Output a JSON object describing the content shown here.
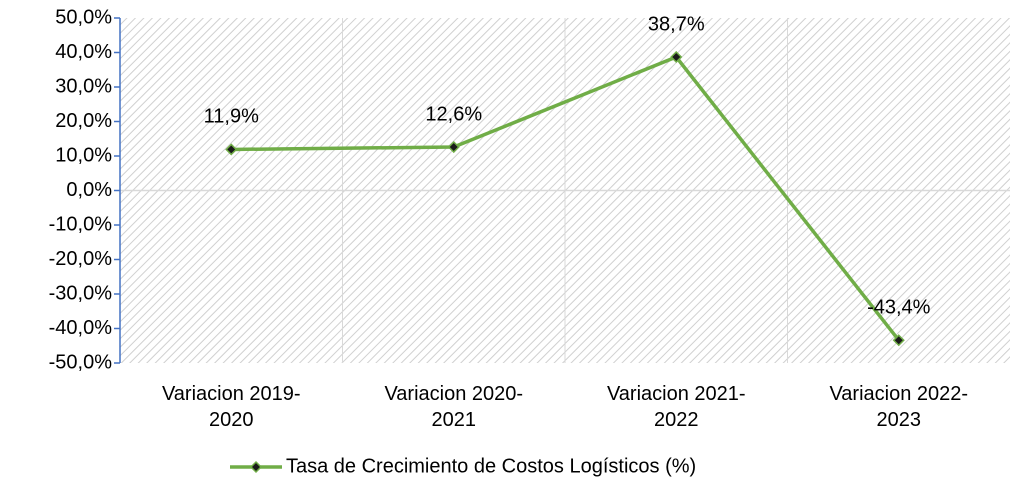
{
  "chart_data": {
    "type": "line",
    "categories": [
      "Variacion 2019-2020",
      "Variacion 2020-2021",
      "Variacion 2021-2022",
      "Variacion 2022-2023"
    ],
    "series": [
      {
        "name": "Tasa de Crecimiento de Costos Logísticos (%)",
        "color": "#70ad47",
        "values": [
          11.9,
          12.6,
          38.7,
          -43.4
        ],
        "value_labels": [
          "11,9%",
          "12,6%",
          "38,7%",
          "-43,4%"
        ]
      }
    ],
    "ylim": [
      -50,
      50
    ],
    "yticks": [
      {
        "value": -50,
        "label": "-50,0%"
      },
      {
        "value": -40,
        "label": "-40,0%"
      },
      {
        "value": -30,
        "label": "-30,0%"
      },
      {
        "value": -20,
        "label": "-20,0%"
      },
      {
        "value": -10,
        "label": "-10,0%"
      },
      {
        "value": 0,
        "label": "0,0%"
      },
      {
        "value": 10,
        "label": "10,0%"
      },
      {
        "value": 20,
        "label": "20,0%"
      },
      {
        "value": 30,
        "label": "30,0%"
      },
      {
        "value": 40,
        "label": "40,0%"
      },
      {
        "value": 50,
        "label": "50,0%"
      }
    ],
    "legend": "bottom"
  }
}
